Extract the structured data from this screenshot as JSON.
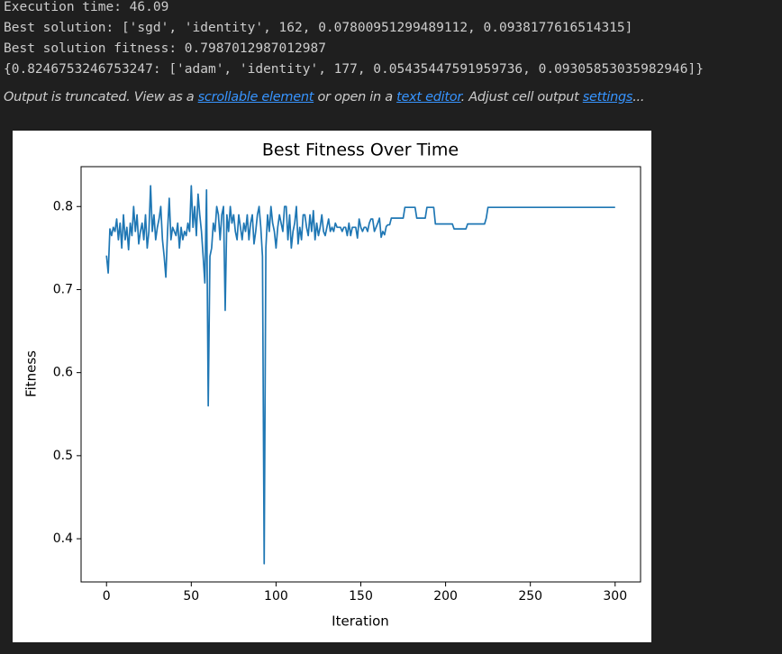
{
  "output": {
    "lines": [
      "Execution time: 46.09",
      "Best solution: ['sgd', 'identity', 162, 0.07800951299489112, 0.0938177616514315]",
      "Best solution fitness: 0.7987012987012987",
      "{0.8246753246753247: ['adam', 'identity', 177, 0.05435447591959736, 0.09305853035982946]}"
    ],
    "truncation": {
      "text1": "Output is truncated. View as a ",
      "link1": "scrollable element",
      "text2": " or open in a ",
      "link2": "text editor",
      "text3": ". Adjust cell output ",
      "link3": "settings",
      "text4": "..."
    }
  },
  "chart_data": {
    "type": "line",
    "title": "Best Fitness Over Time",
    "xlabel": "Iteration",
    "ylabel": "Fitness",
    "color": "#1f77b4",
    "xlim": [
      -15,
      315
    ],
    "ylim": [
      0.348,
      0.848
    ],
    "xticks": [
      0,
      50,
      100,
      150,
      200,
      250,
      300
    ],
    "yticks": [
      0.4,
      0.5,
      0.6,
      0.7,
      0.8
    ],
    "x": [
      0,
      1,
      2,
      3,
      4,
      5,
      6,
      7,
      8,
      9,
      10,
      11,
      12,
      13,
      14,
      15,
      16,
      17,
      18,
      19,
      20,
      21,
      22,
      23,
      24,
      25,
      26,
      27,
      28,
      29,
      30,
      31,
      32,
      33,
      34,
      35,
      36,
      37,
      38,
      39,
      40,
      41,
      42,
      43,
      44,
      45,
      46,
      47,
      48,
      49,
      50,
      51,
      52,
      53,
      54,
      55,
      56,
      57,
      58,
      59,
      60,
      61,
      62,
      63,
      64,
      65,
      66,
      67,
      68,
      69,
      70,
      71,
      72,
      73,
      74,
      75,
      76,
      77,
      78,
      79,
      80,
      81,
      82,
      83,
      84,
      85,
      86,
      87,
      88,
      89,
      90,
      91,
      92,
      93,
      94,
      95,
      96,
      97,
      98,
      99,
      100,
      101,
      102,
      103,
      104,
      105,
      106,
      107,
      108,
      109,
      110,
      111,
      112,
      113,
      114,
      115,
      116,
      117,
      118,
      119,
      120,
      121,
      122,
      123,
      124,
      125,
      126,
      127,
      128,
      129,
      130,
      131,
      132,
      133,
      134,
      135,
      136,
      137,
      138,
      139,
      140,
      141,
      142,
      143,
      144,
      145,
      146,
      147,
      148,
      149,
      150,
      151,
      152,
      153,
      154,
      155,
      156,
      157,
      158,
      159,
      160,
      161,
      162,
      163,
      164,
      165,
      166,
      167,
      168,
      169,
      170,
      171,
      172,
      173,
      174,
      175,
      176,
      177,
      178,
      179,
      180,
      181,
      182,
      183,
      184,
      185,
      186,
      187,
      188,
      189,
      190,
      191,
      192,
      193,
      194,
      195,
      196,
      197,
      198,
      199,
      200,
      201,
      202,
      203,
      204,
      205,
      206,
      207,
      208,
      209,
      210,
      211,
      212,
      213,
      214,
      215,
      216,
      217,
      218,
      219,
      220,
      221,
      222,
      223,
      224,
      225,
      226,
      227,
      228,
      229,
      230,
      231,
      232,
      233,
      234,
      235,
      236,
      237,
      238,
      239,
      240,
      241,
      242,
      243,
      244,
      245,
      246,
      247,
      248,
      249,
      250,
      251,
      252,
      253,
      254,
      255,
      256,
      257,
      258,
      259,
      260,
      261,
      262,
      263,
      264,
      265,
      266,
      267,
      268,
      269,
      270,
      271,
      272,
      273,
      274,
      275,
      276,
      277,
      278,
      279,
      280,
      281,
      282,
      283,
      284,
      285,
      286,
      287,
      288,
      289,
      290,
      291,
      292,
      293,
      294,
      295,
      296,
      297,
      298,
      299,
      300
    ],
    "values": [
      0.741,
      0.72,
      0.773,
      0.765,
      0.775,
      0.77,
      0.785,
      0.76,
      0.78,
      0.75,
      0.79,
      0.76,
      0.775,
      0.748,
      0.78,
      0.765,
      0.8,
      0.77,
      0.79,
      0.755,
      0.77,
      0.78,
      0.76,
      0.79,
      0.75,
      0.77,
      0.825,
      0.77,
      0.79,
      0.76,
      0.775,
      0.785,
      0.8,
      0.76,
      0.74,
      0.715,
      0.77,
      0.81,
      0.76,
      0.775,
      0.77,
      0.765,
      0.78,
      0.75,
      0.775,
      0.76,
      0.77,
      0.765,
      0.78,
      0.77,
      0.825,
      0.775,
      0.8,
      0.765,
      0.815,
      0.79,
      0.77,
      0.74,
      0.708,
      0.82,
      0.56,
      0.74,
      0.75,
      0.78,
      0.77,
      0.8,
      0.79,
      0.76,
      0.79,
      0.8,
      0.675,
      0.79,
      0.77,
      0.8,
      0.78,
      0.79,
      0.77,
      0.76,
      0.79,
      0.775,
      0.76,
      0.78,
      0.77,
      0.79,
      0.76,
      0.78,
      0.79,
      0.755,
      0.77,
      0.79,
      0.8,
      0.775,
      0.74,
      0.37,
      0.75,
      0.79,
      0.77,
      0.8,
      0.78,
      0.77,
      0.75,
      0.775,
      0.79,
      0.78,
      0.77,
      0.8,
      0.8,
      0.76,
      0.79,
      0.75,
      0.77,
      0.78,
      0.8,
      0.755,
      0.775,
      0.76,
      0.79,
      0.79,
      0.775,
      0.765,
      0.79,
      0.77,
      0.795,
      0.76,
      0.78,
      0.765,
      0.775,
      0.79,
      0.77,
      0.765,
      0.775,
      0.785,
      0.77,
      0.775,
      0.77,
      0.78,
      0.775,
      0.775,
      0.775,
      0.77,
      0.775,
      0.775,
      0.765,
      0.78,
      0.765,
      0.775,
      0.775,
      0.775,
      0.762,
      0.785,
      0.775,
      0.77,
      0.775,
      0.775,
      0.77,
      0.78,
      0.785,
      0.785,
      0.77,
      0.775,
      0.78,
      0.786,
      0.763,
      0.77,
      0.766,
      0.776,
      0.778,
      0.778,
      0.786,
      0.786,
      0.786,
      0.786,
      0.786,
      0.786,
      0.786,
      0.786,
      0.799,
      0.799,
      0.799,
      0.799,
      0.799,
      0.799,
      0.799,
      0.786,
      0.786,
      0.786,
      0.786,
      0.786,
      0.786,
      0.799,
      0.799,
      0.799,
      0.799,
      0.799,
      0.779,
      0.779,
      0.779,
      0.779,
      0.779,
      0.779,
      0.779,
      0.779,
      0.779,
      0.779,
      0.779,
      0.773,
      0.773,
      0.773,
      0.773,
      0.773,
      0.773,
      0.773,
      0.773,
      0.779,
      0.779,
      0.779,
      0.779,
      0.779,
      0.779,
      0.779,
      0.779,
      0.779,
      0.779,
      0.779,
      0.786,
      0.799,
      0.799,
      0.799,
      0.799,
      0.799,
      0.799,
      0.799,
      0.799,
      0.799,
      0.799,
      0.799,
      0.799,
      0.799,
      0.799,
      0.799,
      0.799,
      0.799,
      0.799,
      0.799,
      0.799,
      0.799,
      0.799,
      0.799,
      0.799,
      0.799,
      0.799,
      0.799,
      0.799,
      0.799,
      0.799,
      0.799,
      0.799,
      0.799,
      0.799,
      0.799,
      0.799,
      0.799,
      0.799,
      0.799,
      0.799,
      0.799,
      0.799,
      0.799,
      0.799,
      0.799,
      0.799,
      0.799,
      0.799,
      0.799,
      0.799,
      0.799,
      0.799,
      0.799,
      0.799,
      0.799,
      0.799,
      0.799,
      0.799,
      0.799,
      0.799,
      0.799,
      0.799,
      0.799,
      0.799,
      0.799,
      0.799,
      0.799,
      0.799,
      0.799,
      0.799,
      0.799,
      0.799,
      0.799,
      0.799,
      0.799,
      0.799
    ]
  }
}
